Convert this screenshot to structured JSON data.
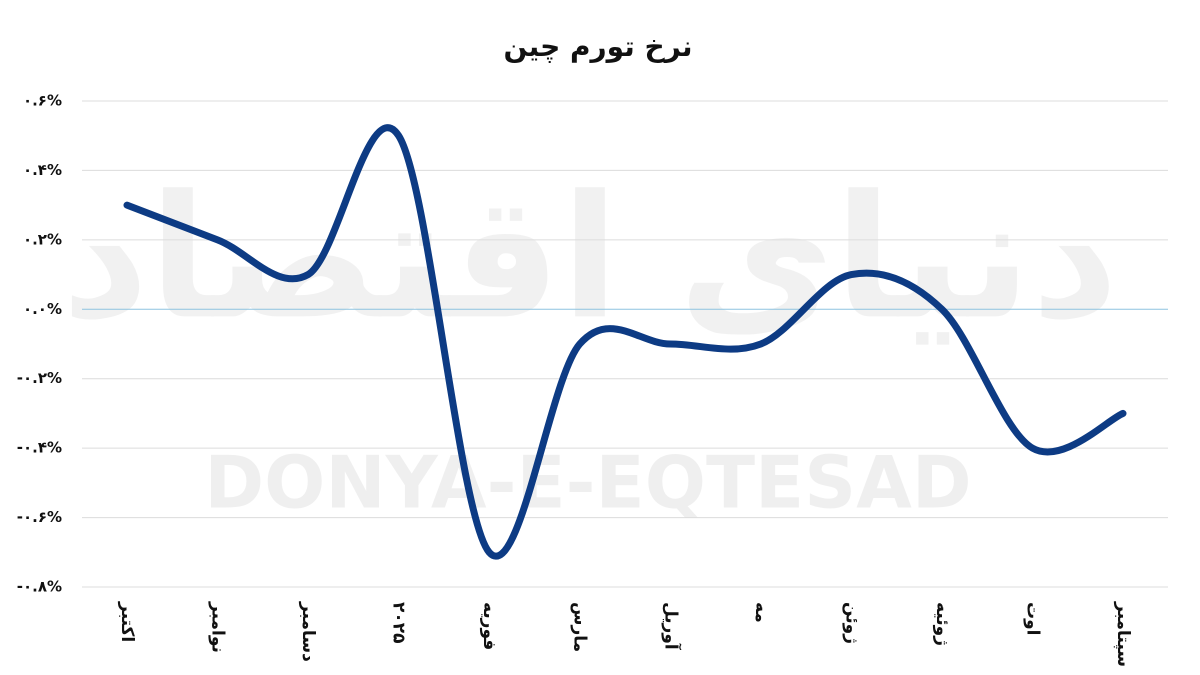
{
  "chart_data": {
    "type": "line",
    "title": "نرخ تورم چین",
    "watermark": [
      "دنیای اقتصاد",
      "DONYA-E-EQTESAD"
    ],
    "categories": [
      "اکتبر",
      "نوامبر",
      "دسامبر",
      "۲۰۲۵",
      "فوریه",
      "مارس",
      "آوریل",
      "مه",
      "ژوئن",
      "ژوئیه",
      "اوت",
      "سپتامبر"
    ],
    "series": [
      {
        "name": "نرخ تورم",
        "color": "#0d3b84",
        "values": [
          0.3,
          0.2,
          0.1,
          0.5,
          -0.7,
          -0.1,
          -0.1,
          -0.1,
          0.1,
          0.0,
          -0.4,
          -0.3
        ]
      }
    ],
    "ylim": [
      -0.8,
      0.6
    ],
    "yticks": [
      {
        "value": -0.8,
        "label": "-۰.۸%"
      },
      {
        "value": -0.6,
        "label": "-۰.۶%"
      },
      {
        "value": -0.4,
        "label": "-۰.۴%"
      },
      {
        "value": -0.2,
        "label": "-۰.۲%"
      },
      {
        "value": 0,
        "label": "۰.۰%"
      },
      {
        "value": 0.2,
        "label": "۰.۲%"
      },
      {
        "value": 0.4,
        "label": "۰.۴%"
      },
      {
        "value": 0.6,
        "label": "۰.۶%"
      }
    ],
    "grid": true,
    "zero_line_color": "#8ec3e0",
    "smooth": true
  }
}
